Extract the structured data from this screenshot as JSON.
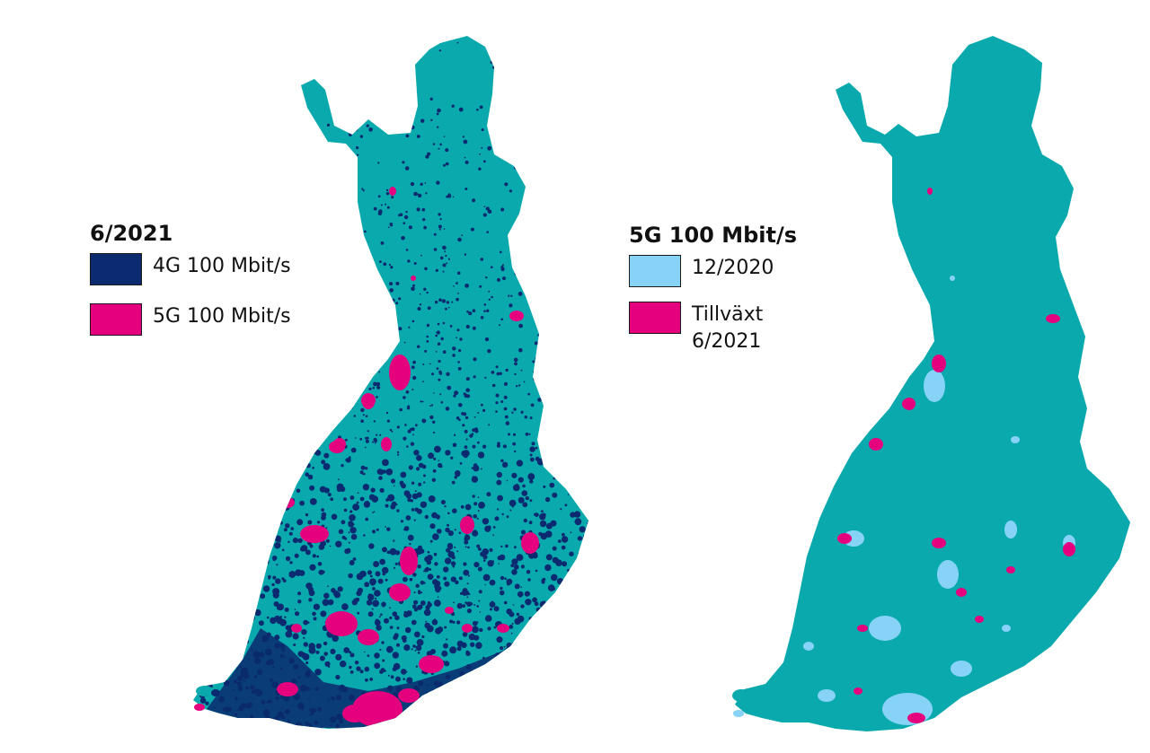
{
  "colors": {
    "base": "#0aa9ad",
    "lte_4g": "#0b2a6f",
    "g5": "#e5007e",
    "g5_2020": "#86d3f7"
  },
  "left_legend": {
    "title": "6/2021",
    "items": [
      {
        "label": "4G 100 Mbit/s",
        "color": "#0b2a6f"
      },
      {
        "label": "5G 100 Mbit/s",
        "color": "#e5007e"
      }
    ]
  },
  "right_legend": {
    "title": "5G 100 Mbit/s",
    "items": [
      {
        "label": "12/2020",
        "color": "#86d3f7"
      },
      {
        "label_line1": "Tillväxt",
        "label_line2": "6/2021",
        "color": "#e5007e"
      }
    ]
  }
}
